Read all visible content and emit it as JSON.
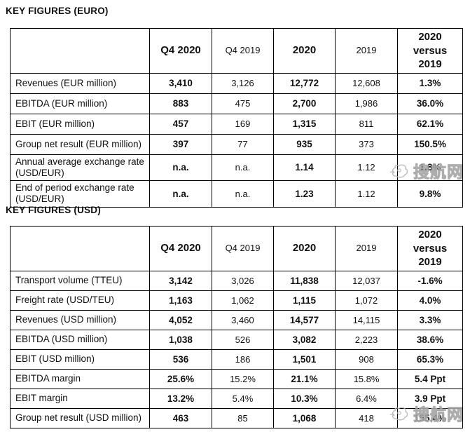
{
  "euro_table": {
    "title": "KEY FIGURES (EURO)",
    "columns": [
      "",
      "Q4 2020",
      "Q4 2019",
      "2020",
      "2019",
      "2020 versus 2019"
    ],
    "rows": [
      {
        "label": "Revenues (EUR million)",
        "values": [
          "3,410",
          "3,126",
          "12,772",
          "12,608",
          "1.3%"
        ]
      },
      {
        "label": "EBITDA (EUR million)",
        "values": [
          "883",
          "475",
          "2,700",
          "1,986",
          "36.0%"
        ]
      },
      {
        "label": "EBIT (EUR million)",
        "values": [
          "457",
          "169",
          "1,315",
          "811",
          "62.1%"
        ]
      },
      {
        "label": "Group net result (EUR million)",
        "values": [
          "397",
          "77",
          "935",
          "373",
          "150.5%"
        ]
      },
      {
        "label": "Annual average exchange rate (USD/EUR)",
        "values": [
          "n.a.",
          "n.a.",
          "1.14",
          "1.12",
          "1.8%"
        ]
      },
      {
        "label": "End of period exchange rate (USD/EUR)",
        "values": [
          "n.a.",
          "n.a.",
          "1.23",
          "1.12",
          "9.8%"
        ]
      }
    ]
  },
  "usd_table": {
    "title": "KEY FIGURES (USD)",
    "columns": [
      "",
      "Q4 2020",
      "Q4 2019",
      "2020",
      "2019",
      "2020 versus 2019"
    ],
    "rows": [
      {
        "label": "Transport volume (TTEU)",
        "values": [
          "3,142",
          "3,026",
          "11,838",
          "12,037",
          "-1.6%"
        ]
      },
      {
        "label": "Freight rate (USD/TEU)",
        "values": [
          "1,163",
          "1,062",
          "1,115",
          "1,072",
          "4.0%"
        ]
      },
      {
        "label": "Revenues (USD million)",
        "values": [
          "4,052",
          "3,460",
          "14,577",
          "14,115",
          "3.3%"
        ]
      },
      {
        "label": "EBITDA (USD million)",
        "values": [
          "1,038",
          "526",
          "3,082",
          "2,223",
          "38.6%"
        ]
      },
      {
        "label": "EBIT (USD million)",
        "values": [
          "536",
          "186",
          "1,501",
          "908",
          "65.3%"
        ]
      },
      {
        "label": "EBITDA margin",
        "values": [
          "25.6%",
          "15.2%",
          "21.1%",
          "15.8%",
          "5.4 Ppt"
        ]
      },
      {
        "label": "EBIT margin",
        "values": [
          "13.2%",
          "5.4%",
          "10.3%",
          "6.4%",
          "3.9 Ppt"
        ]
      },
      {
        "label": "Group net result (USD million)",
        "values": [
          "463",
          "85",
          "1,068",
          "418",
          "155.4%"
        ]
      }
    ]
  },
  "watermark": {
    "text": "搜航网",
    "icon": "souhang-logo-icon",
    "color": "#b5b5b5"
  }
}
